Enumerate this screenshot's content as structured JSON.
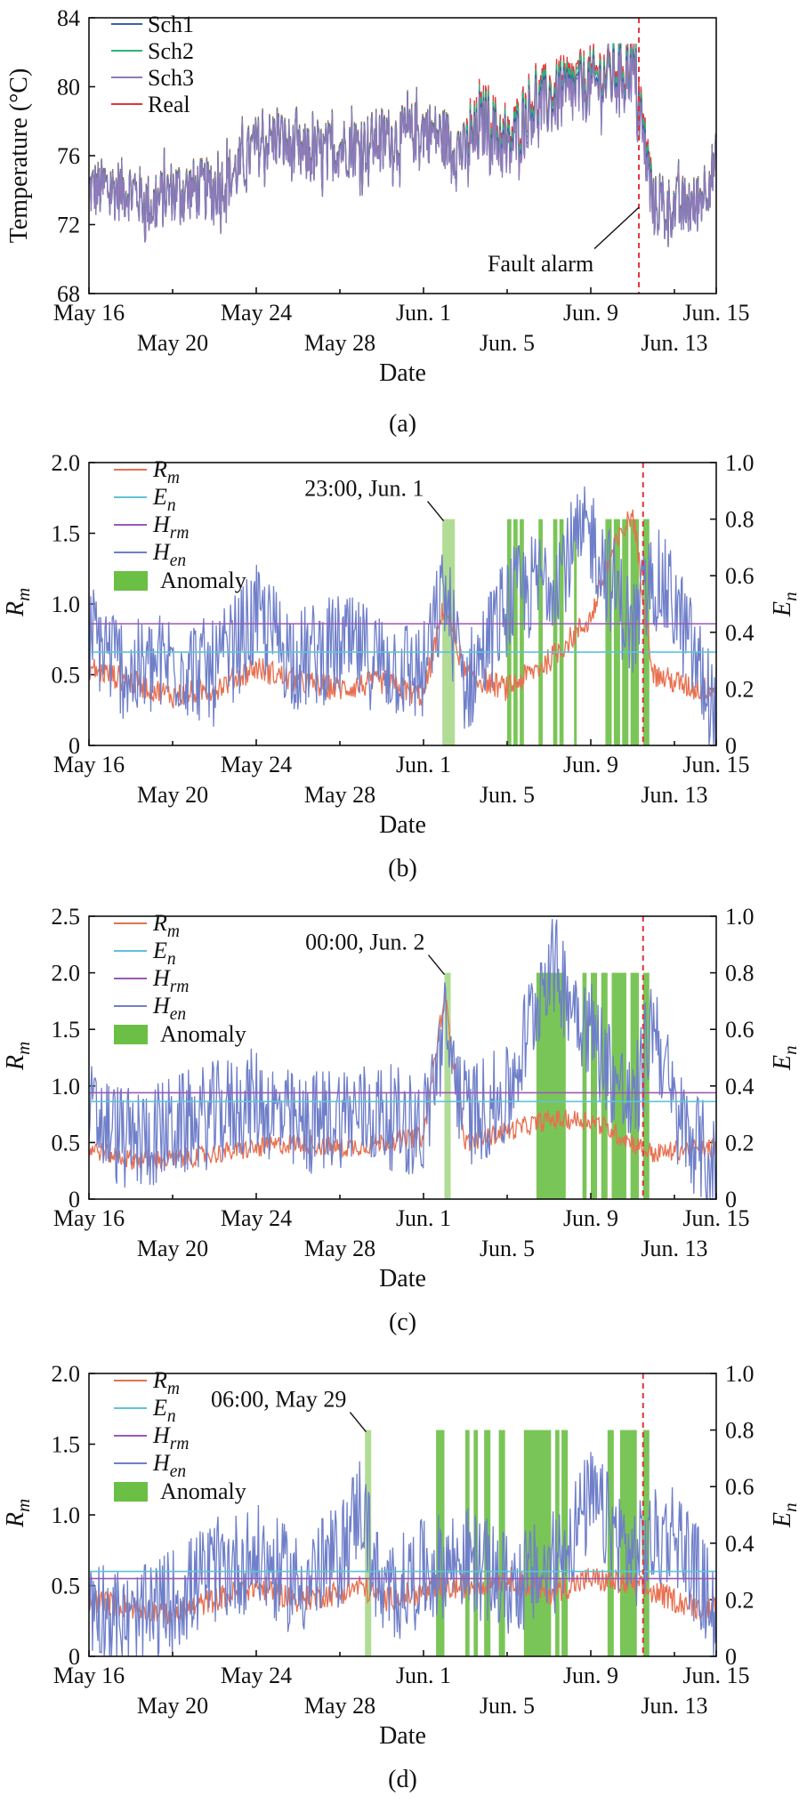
{
  "chart_data": [
    {
      "panel": "(a)",
      "type": "line",
      "xlabel": "Date",
      "ylabel": "Temperature (°C)",
      "xlim": [
        "May 16",
        "Jun. 15"
      ],
      "ylim": [
        68,
        84
      ],
      "yticks": [
        "68",
        "72",
        "76",
        "80",
        "84"
      ],
      "xticks_top": [
        "May 16",
        "May 24",
        "Jun. 1",
        "Jun. 9",
        "Jun. 15"
      ],
      "xticks_bottom": [
        "May 20",
        "May 28",
        "Jun. 5",
        "Jun. 13"
      ],
      "series": [
        {
          "name": "Sch1",
          "color": "#3b5fa8"
        },
        {
          "name": "Sch2",
          "color": "#2db37a"
        },
        {
          "name": "Sch3",
          "color": "#8e7bb8"
        },
        {
          "name": "Real",
          "color": "#e0353a"
        }
      ],
      "annotation": {
        "text": "Fault alarm",
        "x_day": 26.3
      },
      "values_by_day": [
        [
          0,
          74
        ],
        [
          1,
          74
        ],
        [
          2,
          74
        ],
        [
          3,
          73
        ],
        [
          4,
          74
        ],
        [
          5,
          74
        ],
        [
          6,
          74
        ],
        [
          7,
          75
        ],
        [
          8,
          76.5
        ],
        [
          9,
          77
        ],
        [
          10,
          76
        ],
        [
          11,
          76
        ],
        [
          12,
          76.5
        ],
        [
          13,
          76.5
        ],
        [
          14,
          77
        ],
        [
          15,
          77
        ],
        [
          16,
          77.5
        ],
        [
          17,
          77
        ],
        [
          18,
          76
        ],
        [
          19,
          78
        ],
        [
          20,
          76
        ],
        [
          21,
          78.5
        ],
        [
          22,
          79
        ],
        [
          23,
          79.5
        ],
        [
          24,
          80
        ],
        [
          25,
          80.5
        ],
        [
          26,
          81
        ],
        [
          27,
          73
        ],
        [
          28,
          73
        ],
        [
          29,
          73
        ],
        [
          30,
          75.5
        ]
      ]
    },
    {
      "panel": "(b)",
      "type": "line",
      "xlabel": "Date",
      "ylabel": "Rm",
      "ylabel_right": "En",
      "xlim": [
        "May 16",
        "Jun. 15"
      ],
      "ylim": [
        0,
        2.0
      ],
      "ylim_right": [
        0,
        1.0
      ],
      "yticks": [
        "0",
        "0.5",
        "1.0",
        "1.5",
        "2.0"
      ],
      "yticks_right": [
        "0",
        "0.2",
        "0.4",
        "0.6",
        "0.8",
        "1.0"
      ],
      "xticks_top": [
        "May 16",
        "May 24",
        "Jun. 1",
        "Jun. 9",
        "Jun. 15"
      ],
      "xticks_bottom": [
        "May 20",
        "May 28",
        "Jun. 5",
        "Jun. 13"
      ],
      "thresholds": {
        "Hrm": 0.86,
        "Hen": 0.33
      },
      "annotation": {
        "text": "23:00, Jun. 1",
        "x_day": 16.96
      },
      "anomaly_days": [
        [
          16.9,
          17.5
        ],
        [
          20.0,
          20.2
        ],
        [
          20.3,
          20.5
        ],
        [
          20.6,
          20.8
        ],
        [
          21.5,
          21.7
        ],
        [
          22.2,
          22.4
        ],
        [
          22.5,
          22.7
        ],
        [
          23.2,
          23.3
        ],
        [
          24.7,
          25.0
        ],
        [
          25.1,
          25.4
        ],
        [
          25.5,
          25.8
        ],
        [
          25.9,
          26.3
        ],
        [
          26.5,
          26.8
        ]
      ],
      "Rm": [
        [
          0,
          0.55
        ],
        [
          2,
          0.45
        ],
        [
          4,
          0.35
        ],
        [
          6,
          0.4
        ],
        [
          8,
          0.55
        ],
        [
          10,
          0.45
        ],
        [
          12,
          0.4
        ],
        [
          14,
          0.45
        ],
        [
          16,
          0.35
        ],
        [
          17,
          1.0
        ],
        [
          18,
          0.5
        ],
        [
          20,
          0.4
        ],
        [
          22,
          0.6
        ],
        [
          24,
          0.9
        ],
        [
          25,
          1.35
        ],
        [
          26,
          1.65
        ],
        [
          27,
          0.5
        ],
        [
          29,
          0.4
        ],
        [
          30,
          0.4
        ]
      ],
      "En": [
        [
          0,
          0.4
        ],
        [
          2,
          0.25
        ],
        [
          4,
          0.3
        ],
        [
          6,
          0.25
        ],
        [
          8,
          0.45
        ],
        [
          10,
          0.3
        ],
        [
          12,
          0.35
        ],
        [
          14,
          0.3
        ],
        [
          16,
          0.25
        ],
        [
          17,
          0.55
        ],
        [
          18,
          0.2
        ],
        [
          20,
          0.5
        ],
        [
          22,
          0.6
        ],
        [
          24,
          0.75
        ],
        [
          26,
          0.4
        ],
        [
          27,
          0.6
        ],
        [
          28,
          0.5
        ],
        [
          29,
          0.3
        ],
        [
          30,
          0.1
        ]
      ]
    },
    {
      "panel": "(c)",
      "type": "line",
      "xlabel": "Date",
      "ylabel": "Rm",
      "ylabel_right": "En",
      "xlim": [
        "May 16",
        "Jun. 15"
      ],
      "ylim": [
        0,
        2.5
      ],
      "ylim_right": [
        0,
        1.0
      ],
      "yticks": [
        "0",
        "0.5",
        "1.0",
        "1.5",
        "2.0",
        "2.5"
      ],
      "yticks_right": [
        "0",
        "0.2",
        "0.4",
        "0.6",
        "0.8",
        "1.0"
      ],
      "xticks_top": [
        "May 16",
        "May 24",
        "Jun. 1",
        "Jun. 9",
        "Jun. 15"
      ],
      "xticks_bottom": [
        "May 20",
        "May 28",
        "Jun. 5",
        "Jun. 13"
      ],
      "thresholds": {
        "Hrm": 0.94,
        "Hen": 0.345
      },
      "annotation": {
        "text": "00:00, Jun. 2",
        "x_day": 17.0
      },
      "anomaly_days": [
        [
          17.0,
          17.3
        ],
        [
          21.4,
          22.8
        ],
        [
          23.6,
          23.8
        ],
        [
          24.0,
          24.3
        ],
        [
          24.5,
          24.8
        ],
        [
          25.0,
          25.7
        ],
        [
          25.9,
          26.3
        ],
        [
          26.5,
          26.8
        ]
      ],
      "Rm": [
        [
          0,
          0.45
        ],
        [
          2,
          0.35
        ],
        [
          4,
          0.35
        ],
        [
          6,
          0.4
        ],
        [
          8,
          0.45
        ],
        [
          10,
          0.5
        ],
        [
          12,
          0.45
        ],
        [
          14,
          0.5
        ],
        [
          16,
          0.55
        ],
        [
          17,
          1.8
        ],
        [
          18,
          0.5
        ],
        [
          20,
          0.6
        ],
        [
          22,
          0.7
        ],
        [
          24,
          0.7
        ],
        [
          26,
          0.5
        ],
        [
          27,
          0.4
        ],
        [
          29,
          0.45
        ],
        [
          30,
          0.45
        ]
      ],
      "En": [
        [
          0,
          0.3
        ],
        [
          2,
          0.2
        ],
        [
          4,
          0.25
        ],
        [
          6,
          0.3
        ],
        [
          8,
          0.35
        ],
        [
          10,
          0.25
        ],
        [
          12,
          0.3
        ],
        [
          14,
          0.3
        ],
        [
          16,
          0.25
        ],
        [
          17,
          0.6
        ],
        [
          18,
          0.3
        ],
        [
          20,
          0.35
        ],
        [
          22,
          0.85
        ],
        [
          24,
          0.6
        ],
        [
          26,
          0.3
        ],
        [
          27,
          0.65
        ],
        [
          28,
          0.3
        ],
        [
          30,
          0.1
        ]
      ]
    },
    {
      "panel": "(d)",
      "type": "line",
      "xlabel": "Date",
      "ylabel": "Rm",
      "ylabel_right": "En",
      "xlim": [
        "May 16",
        "Jun. 15"
      ],
      "ylim": [
        0,
        2.0
      ],
      "ylim_right": [
        0,
        1.0
      ],
      "yticks": [
        "0",
        "0.5",
        "1.0",
        "1.5",
        "2.0"
      ],
      "yticks_right": [
        "0",
        "0.2",
        "0.4",
        "0.6",
        "0.8",
        "1.0"
      ],
      "xticks_top": [
        "May 16",
        "May 24",
        "Jun. 1",
        "Jun. 9",
        "Jun. 15"
      ],
      "xticks_bottom": [
        "May 20",
        "May 28",
        "Jun. 5",
        "Jun. 13"
      ],
      "thresholds": {
        "Hrm": 0.55,
        "Hen": 0.3
      },
      "annotation": {
        "text": "06:00, May 29",
        "x_day": 13.25
      },
      "anomaly_days": [
        [
          13.2,
          13.5
        ],
        [
          16.6,
          17.0
        ],
        [
          18.0,
          18.2
        ],
        [
          18.4,
          18.6
        ],
        [
          18.9,
          19.2
        ],
        [
          19.6,
          19.9
        ],
        [
          20.8,
          22.1
        ],
        [
          22.3,
          22.5
        ],
        [
          22.6,
          22.9
        ],
        [
          24.8,
          25.1
        ],
        [
          25.4,
          26.2
        ],
        [
          26.5,
          26.8
        ]
      ],
      "Rm": [
        [
          0,
          0.4
        ],
        [
          2,
          0.35
        ],
        [
          4,
          0.3
        ],
        [
          6,
          0.4
        ],
        [
          8,
          0.5
        ],
        [
          10,
          0.4
        ],
        [
          12,
          0.45
        ],
        [
          13,
          0.5
        ],
        [
          14,
          0.4
        ],
        [
          16,
          0.45
        ],
        [
          18,
          0.5
        ],
        [
          20,
          0.55
        ],
        [
          22,
          0.45
        ],
        [
          24,
          0.55
        ],
        [
          26,
          0.5
        ],
        [
          27,
          0.45
        ],
        [
          29,
          0.35
        ],
        [
          30,
          0.35
        ]
      ],
      "En": [
        [
          0,
          0.2
        ],
        [
          2,
          0.1
        ],
        [
          4,
          0.2
        ],
        [
          6,
          0.3
        ],
        [
          8,
          0.35
        ],
        [
          10,
          0.25
        ],
        [
          12,
          0.35
        ],
        [
          13,
          0.55
        ],
        [
          14,
          0.2
        ],
        [
          16,
          0.3
        ],
        [
          18,
          0.35
        ],
        [
          20,
          0.25
        ],
        [
          22,
          0.3
        ],
        [
          24,
          0.55
        ],
        [
          26,
          0.35
        ],
        [
          28,
          0.45
        ],
        [
          30,
          0.15
        ]
      ]
    }
  ],
  "legend": {
    "a": [
      "Sch1",
      "Sch2",
      "Sch3",
      "Real"
    ],
    "rm_main": "R",
    "rm_sub": "m",
    "en_main": "E",
    "en_sub": "n",
    "hrm_main": "H",
    "hrm_sub": "rm",
    "hen_main": "H",
    "hen_sub": "en",
    "anomaly": "Anomaly"
  },
  "colors": {
    "Rm": "#e8704f",
    "En": "#5ec3d9",
    "Hrm": "#9b59b6",
    "Hen": "#6f7fc9",
    "Anomaly": "#6bbf45",
    "AnomalyFirst": "#a8d88a",
    "Fault": "#e0353a"
  }
}
